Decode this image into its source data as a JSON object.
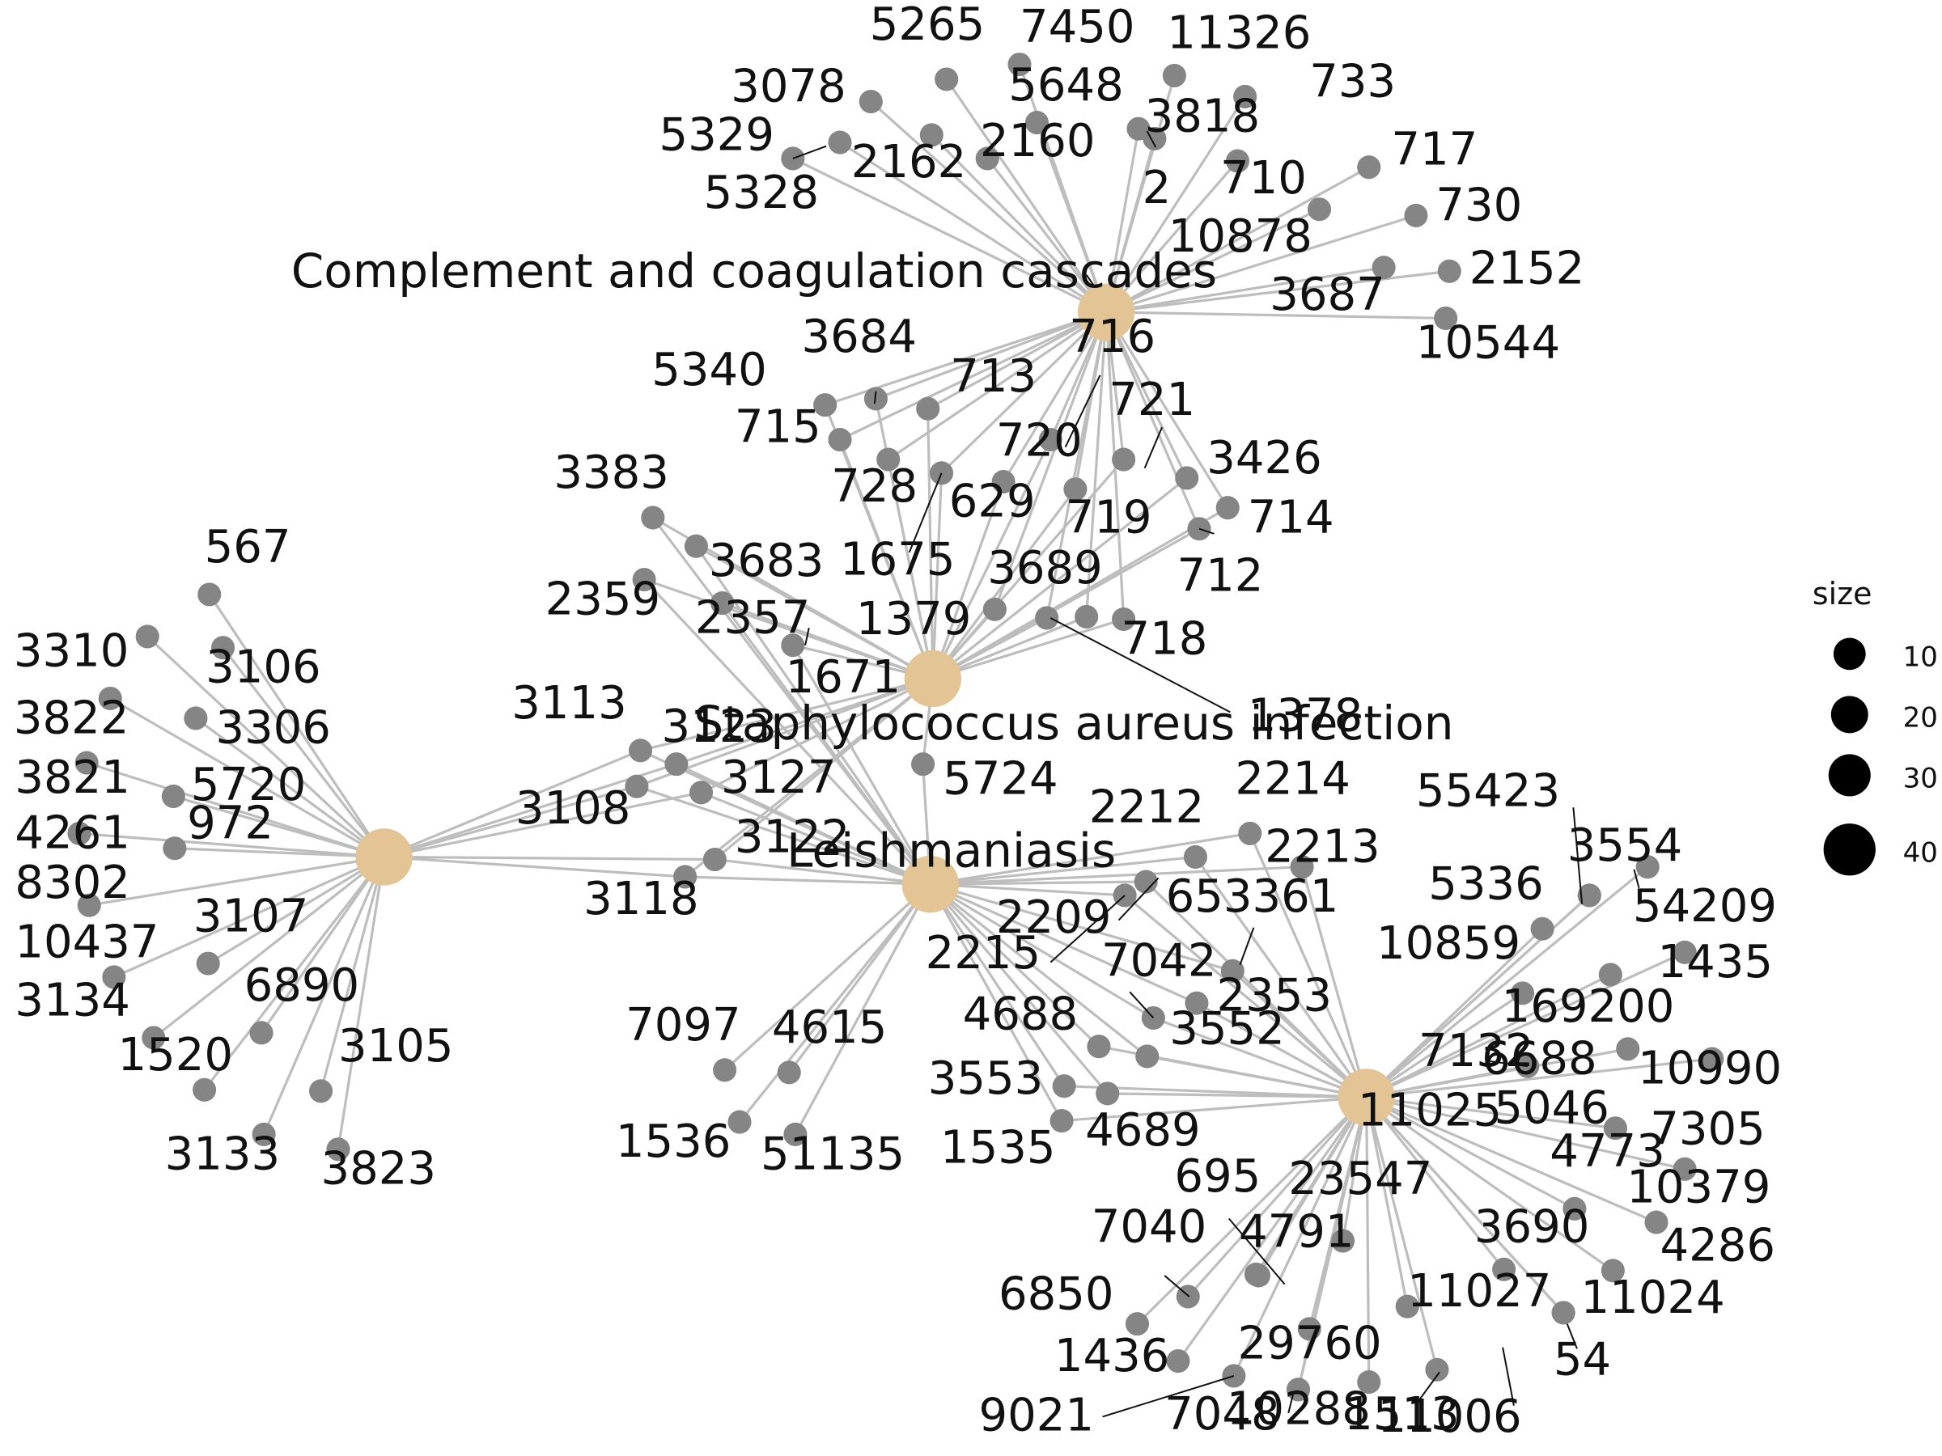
{
  "chart_data": {
    "type": "network",
    "categories": [
      {
        "id": "c1",
        "label": "Complement and coagulation cascades"
      },
      {
        "id": "c2",
        "label": "Staphylococcus aureus infection"
      },
      {
        "id": "c3",
        "label": ""
      },
      {
        "id": "c4",
        "label": "Leishmaniasis"
      },
      {
        "id": "c5",
        "label": ""
      }
    ],
    "gene_labels": [
      "5265",
      "7450",
      "11326",
      "3078",
      "5648",
      "733",
      "5329",
      "3818",
      "2160",
      "717",
      "2162",
      "710",
      "2",
      "5328",
      "730",
      "10878",
      "2152",
      "3687",
      "10544",
      "716",
      "3684",
      "5340",
      "713",
      "715",
      "721",
      "720",
      "728",
      "3426",
      "629",
      "3383",
      "719",
      "714",
      "1675",
      "3683",
      "712",
      "2359",
      "3689",
      "2357",
      "1379",
      "718",
      "1671",
      "1378",
      "567",
      "3310",
      "3106",
      "3822",
      "3306",
      "3821",
      "5720",
      "4261",
      "972",
      "8302",
      "10437",
      "3107",
      "3134",
      "6890",
      "1520",
      "3105",
      "3133",
      "3823",
      "3113",
      "3123",
      "3127",
      "3108",
      "3122",
      "3118",
      "5724",
      "2214",
      "2212",
      "2213",
      "2209",
      "653361",
      "2215",
      "7042",
      "2353",
      "4688",
      "3552",
      "3553",
      "4689",
      "1535",
      "7097",
      "4615",
      "1536",
      "51135",
      "55423",
      "3554",
      "5336",
      "54209",
      "10859",
      "1435",
      "169200",
      "7132",
      "6688",
      "10990",
      "11025",
      "5046",
      "7305",
      "4773",
      "10379",
      "4286",
      "695",
      "23547",
      "7040",
      "4791",
      "3690",
      "6850",
      "11027",
      "11024",
      "29760",
      "1436",
      "54",
      "9021",
      "7048",
      "10288",
      "1513",
      "11006"
    ],
    "legend": {
      "title": "size",
      "values": [
        "10",
        "20",
        "30",
        "40"
      ]
    }
  }
}
